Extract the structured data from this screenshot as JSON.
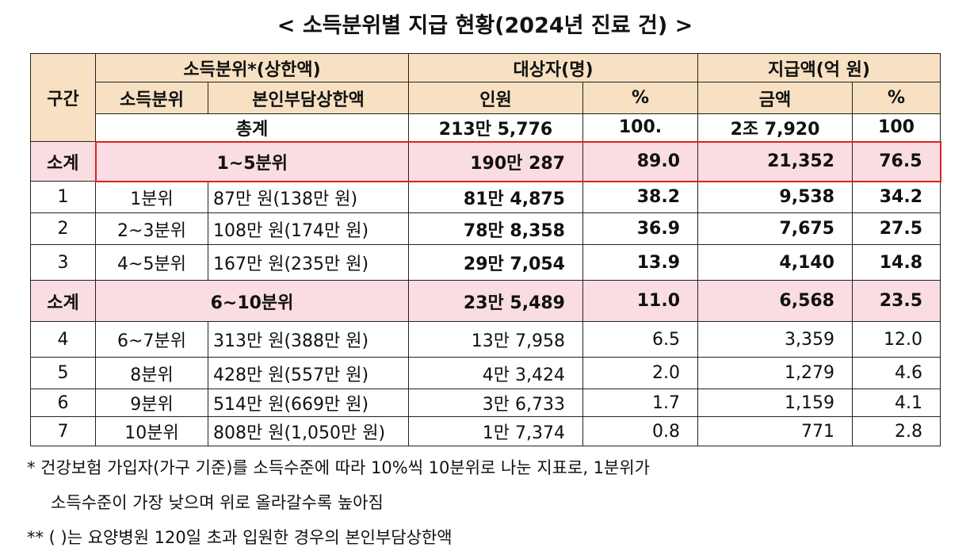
{
  "title": "< 소득분위별 지급 현황(2024년 진료 건) >",
  "table": {
    "header_top": [
      "구간",
      "소득분위*(상한액)",
      "대상자(명)",
      "지급액(억 원)"
    ],
    "header_sub": [
      "소득분위",
      "본인부담상한액",
      "인원",
      "%",
      "금액",
      "%"
    ],
    "total": [
      "총계",
      "213만 5,776",
      "100.",
      "2조 7,920",
      "100"
    ],
    "subtotals": [
      [
        "소계",
        "1~5분위",
        "190만 287",
        "89.0",
        "21,352",
        "76.5"
      ],
      [
        "소계",
        "6~10분위",
        "23만 5,489",
        "11.0",
        "6,568",
        "23.5"
      ]
    ],
    "rows": [
      [
        "1",
        "1분위",
        "87만 원(138만 원)",
        "81만 4,875",
        "38.2",
        "9,538",
        "34.2"
      ],
      [
        "2",
        "2~3분위",
        "108만 원(174만 원)",
        "78만 8,358",
        "36.9",
        "7,675",
        "27.5"
      ],
      [
        "3",
        "4~5분위",
        "167만 원(235만 원)",
        "29만 7,054",
        "13.9",
        "4,140",
        "14.8"
      ],
      [
        "4",
        "6~7분위",
        "313만 원(388만 원)",
        "13만 7,958",
        "6.5",
        "3,359",
        "12.0"
      ],
      [
        "5",
        "8분위",
        "428만 원(557만 원)",
        "4만 3,424",
        "2.0",
        "1,279",
        "4.6"
      ],
      [
        "6",
        "9분위",
        "514만 원(669만 원)",
        "3만 6,733",
        "1.7",
        "1,159",
        "4.1"
      ],
      [
        "7",
        "10분위",
        "808만 원(1,050만 원)",
        "1만 7,374",
        "0.8",
        "771",
        "2.8"
      ]
    ]
  },
  "footnotes": [
    "* 건강보험 가입자(가구 기준)를 소득수준에 따라 10%씩 10분위로 나눈 지표로, 1분위가",
    "소득수준이 가장 낮으며 위로 올라갈수록 높아짐",
    "** (   )는 요양병원 120일 초과 입원한 경우의 본인부담상한액"
  ]
}
